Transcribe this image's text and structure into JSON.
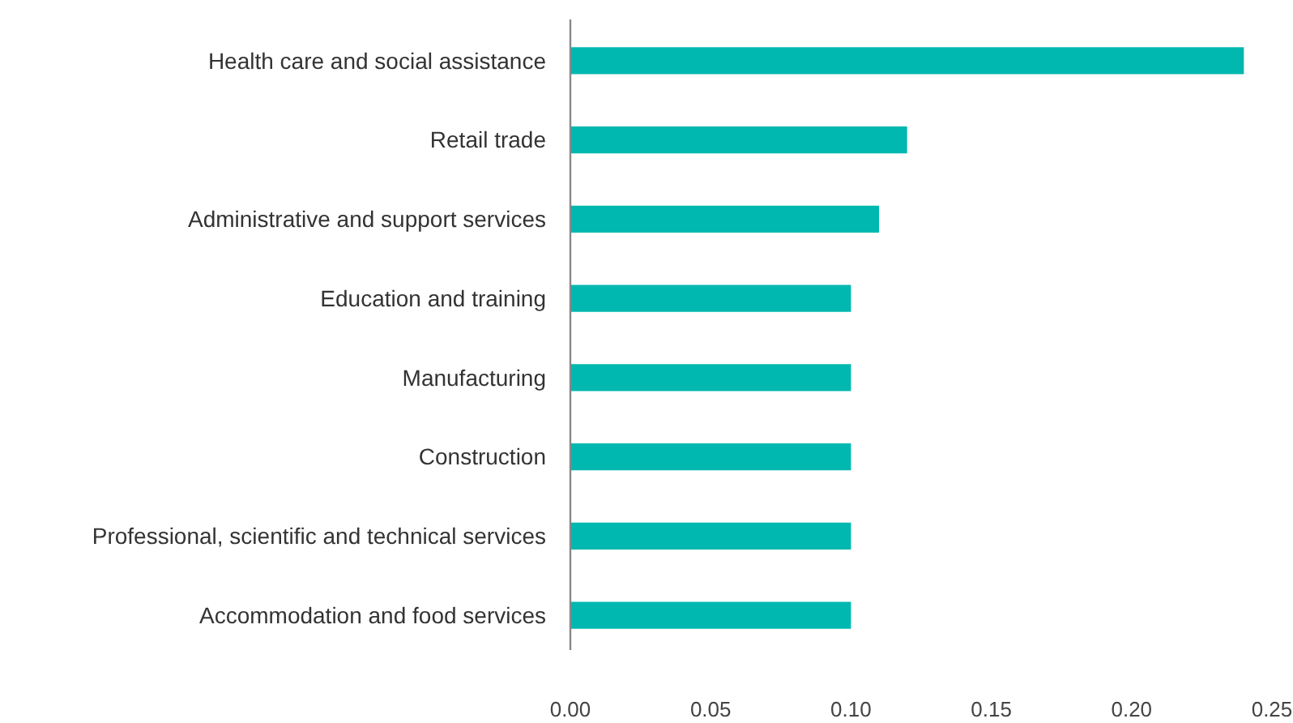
{
  "chart_data": {
    "type": "bar",
    "orientation": "horizontal",
    "categories": [
      "Health care and social assistance",
      "Retail trade",
      "Administrative and support services",
      "Education and training",
      "Manufacturing",
      "Construction",
      "Professional, scientific and technical services",
      "Accommodation and food services"
    ],
    "values": [
      0.24,
      0.12,
      0.11,
      0.1,
      0.1,
      0.1,
      0.1,
      0.1
    ],
    "color": "#00b8b0",
    "xlim": [
      0,
      0.25
    ],
    "xticks": [
      {
        "value": 0,
        "label": "0.00"
      },
      {
        "value": 0.05,
        "label": "0.05"
      },
      {
        "value": 0.1,
        "label": "0.10"
      },
      {
        "value": 0.15,
        "label": "0.15"
      },
      {
        "value": 0.2,
        "label": "0.20"
      },
      {
        "value": 0.25,
        "label": "0.25"
      }
    ],
    "grid": false
  }
}
